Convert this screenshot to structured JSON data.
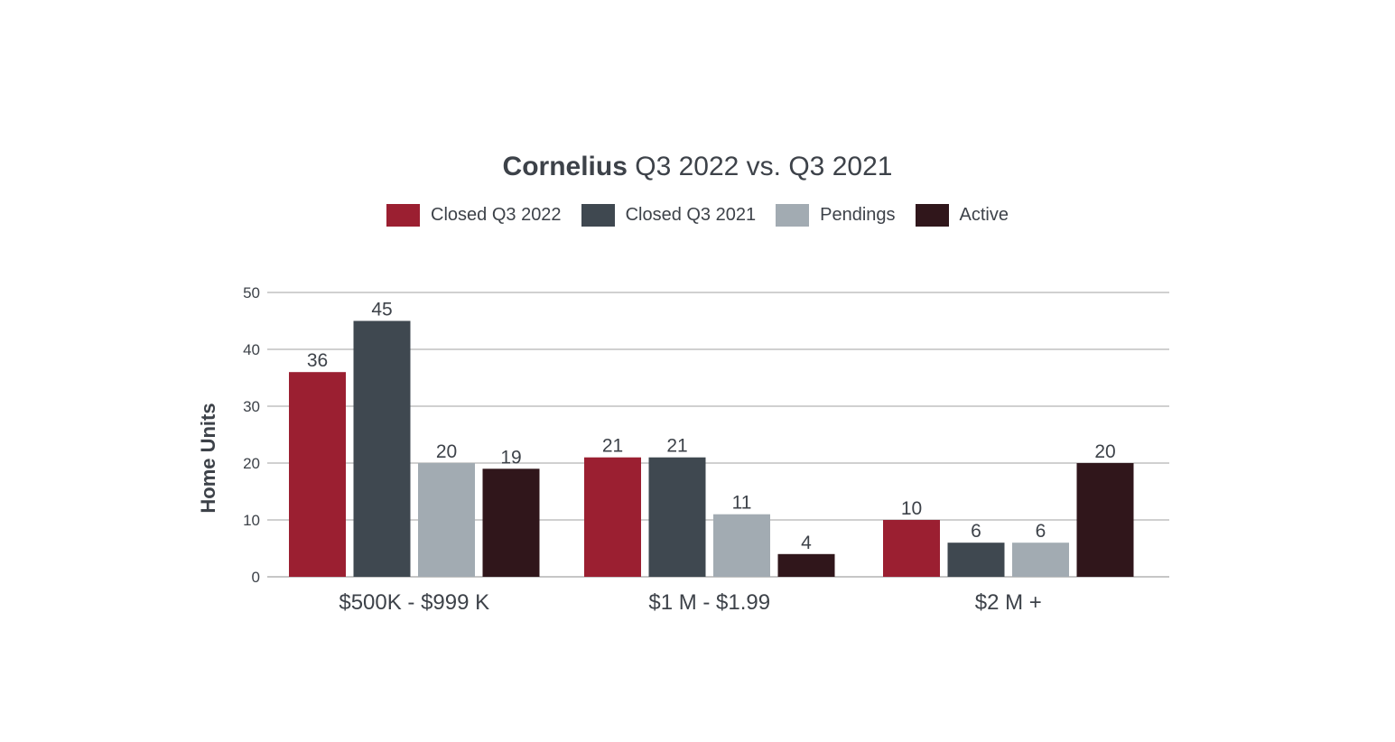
{
  "chart_data": {
    "type": "bar",
    "title_bold": "Cornelius",
    "title_rest": " Q3 2022 vs. Q3 2021",
    "ylabel": "Home Units",
    "xlabel": "",
    "ylim": [
      0,
      50
    ],
    "yticks": [
      0,
      10,
      20,
      30,
      40,
      50
    ],
    "grid": true,
    "legend_position": "top-center",
    "categories": [
      "$500K - $999 K",
      "$1 M - $1.99",
      "$2 M +"
    ],
    "series": [
      {
        "name": "Closed Q3 2022",
        "color": "#9b1f31",
        "values": [
          36,
          21,
          10
        ]
      },
      {
        "name": "Closed Q3 2021",
        "color": "#3f4850",
        "values": [
          45,
          21,
          6
        ]
      },
      {
        "name": "Pendings",
        "color": "#a2abb2",
        "values": [
          20,
          11,
          6
        ]
      },
      {
        "name": "Active",
        "color": "#30161b",
        "values": [
          19,
          4,
          20
        ]
      }
    ]
  }
}
